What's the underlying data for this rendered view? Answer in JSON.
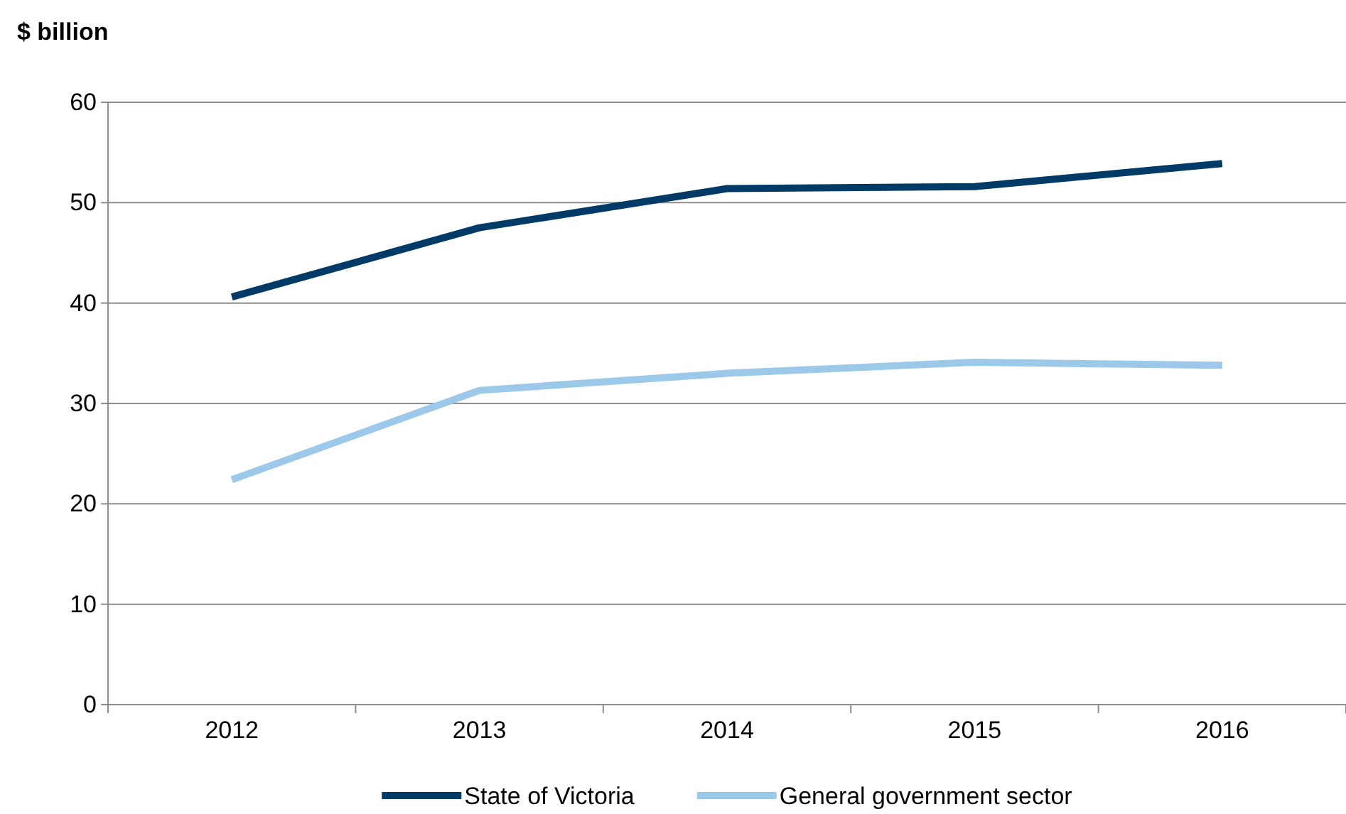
{
  "chart_data": {
    "type": "line",
    "ylabel": "$ billion",
    "categories": [
      "2012",
      "2013",
      "2014",
      "2015",
      "2016"
    ],
    "series": [
      {
        "name": "State of Victoria",
        "color": "#003a66",
        "values": [
          40.6,
          47.5,
          51.4,
          51.6,
          53.9
        ]
      },
      {
        "name": "General government sector",
        "color": "#9cc8ea",
        "values": [
          22.4,
          31.3,
          33.0,
          34.1,
          33.8
        ]
      }
    ],
    "ylim": [
      0,
      60
    ],
    "yticks": [
      0,
      10,
      20,
      30,
      40,
      50,
      60
    ],
    "grid": "y",
    "legend": "bottom",
    "marker": "none",
    "line_style": "solid"
  }
}
